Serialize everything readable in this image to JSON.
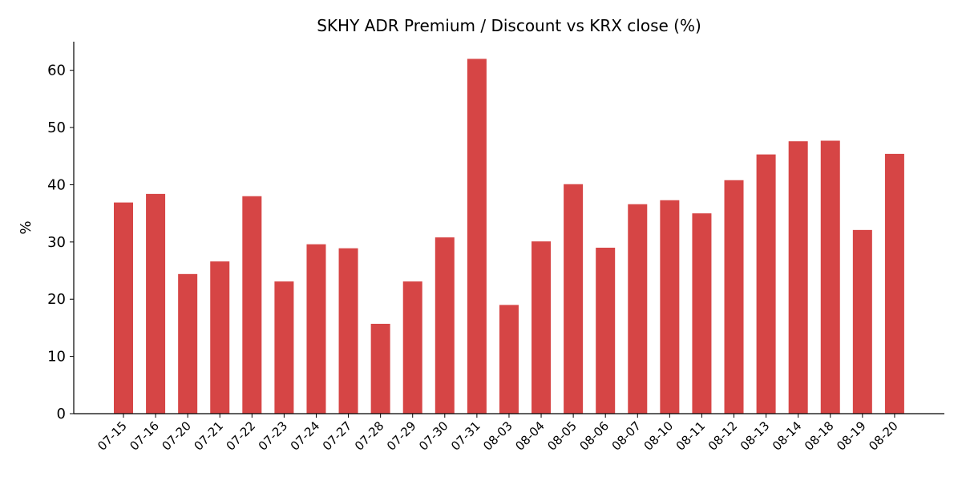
{
  "chart_data": {
    "type": "bar",
    "title": "SKHY ADR Premium / Discount vs KRX close (%)",
    "xlabel": "",
    "ylabel": "%",
    "ylim": [
      0,
      65
    ],
    "yticks": [
      0,
      10,
      20,
      30,
      40,
      50,
      60
    ],
    "grid": false,
    "legend": "none",
    "bar_color": "#d64545",
    "categories": [
      "07-15",
      "07-16",
      "07-20",
      "07-21",
      "07-22",
      "07-23",
      "07-24",
      "07-27",
      "07-28",
      "07-29",
      "07-30",
      "07-31",
      "08-03",
      "08-04",
      "08-05",
      "08-06",
      "08-07",
      "08-10",
      "08-11",
      "08-12",
      "08-13",
      "08-14",
      "08-18",
      "08-19",
      "08-20"
    ],
    "values": [
      36.9,
      38.4,
      24.4,
      26.6,
      38.0,
      23.1,
      29.6,
      28.9,
      15.7,
      23.1,
      30.8,
      62.0,
      19.0,
      30.1,
      40.1,
      29.0,
      36.6,
      37.3,
      35.0,
      40.8,
      45.3,
      47.6,
      47.7,
      32.1,
      45.4
    ]
  }
}
